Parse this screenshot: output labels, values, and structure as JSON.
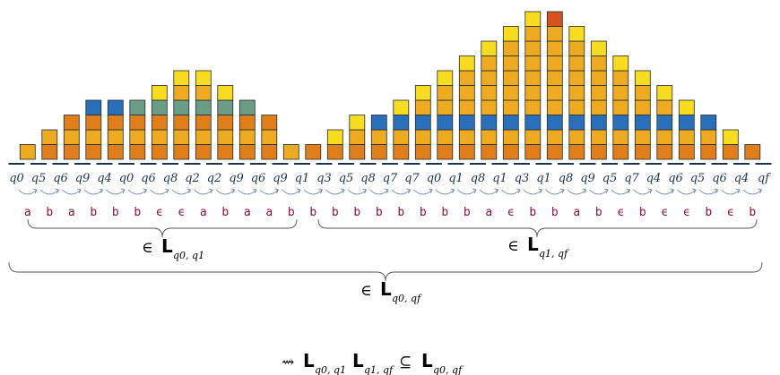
{
  "states": [
    "q0",
    "q5",
    "q6",
    "q9",
    "q4",
    "q0",
    "q6",
    "q8",
    "q2",
    "q2",
    "q9",
    "q6",
    "q9",
    "q1",
    "q3",
    "q5",
    "q8",
    "q7",
    "q7",
    "q0",
    "q1",
    "q8",
    "q1",
    "q3",
    "q1",
    "q8",
    "q9",
    "q5",
    "q7",
    "q4",
    "q6",
    "q5",
    "q6",
    "q4",
    "qf"
  ],
  "letters": [
    "a",
    "b",
    "a",
    "b",
    "b",
    "b",
    "ϵ",
    "ϵ",
    "a",
    "b",
    "a",
    "a",
    "b",
    "b",
    "b",
    "b",
    "b",
    "b",
    "b",
    "b",
    "b",
    "a",
    "ϵ",
    "b",
    "b",
    "a",
    "b",
    "ϵ",
    "b",
    "ϵ",
    "ϵ",
    "b",
    "ϵ",
    "b"
  ],
  "colors": {
    "orange": "#e07f1a",
    "amber": "#eeaa20",
    "yellow": "#f8dc20",
    "blue": "#2a6fba",
    "teal": "#6b9c86",
    "red": "#d9511e"
  },
  "stacks": [
    [
      "amber"
    ],
    [
      "orange",
      "amber"
    ],
    [
      "orange",
      "amber",
      "orange"
    ],
    [
      "orange",
      "amber",
      "orange",
      "blue"
    ],
    [
      "orange",
      "amber",
      "orange",
      "blue"
    ],
    [
      "orange",
      "amber",
      "orange",
      "teal"
    ],
    [
      "orange",
      "amber",
      "orange",
      "teal",
      "yellow"
    ],
    [
      "orange",
      "amber",
      "orange",
      "teal",
      "amber",
      "yellow"
    ],
    [
      "orange",
      "amber",
      "orange",
      "teal",
      "amber",
      "yellow"
    ],
    [
      "orange",
      "amber",
      "orange",
      "teal",
      "yellow"
    ],
    [
      "orange",
      "amber",
      "orange",
      "teal"
    ],
    [
      "orange",
      "amber",
      "orange"
    ],
    [
      "amber"
    ],
    [
      "orange"
    ],
    [
      "orange",
      "yellow"
    ],
    [
      "orange",
      "amber",
      "yellow"
    ],
    [
      "orange",
      "amber",
      "blue"
    ],
    [
      "orange",
      "amber",
      "blue",
      "yellow"
    ],
    [
      "orange",
      "amber",
      "blue",
      "amber",
      "yellow"
    ],
    [
      "orange",
      "amber",
      "blue",
      "amber",
      "amber",
      "yellow"
    ],
    [
      "orange",
      "amber",
      "blue",
      "amber",
      "amber",
      "amber",
      "yellow"
    ],
    [
      "orange",
      "amber",
      "blue",
      "amber",
      "amber",
      "amber",
      "amber",
      "yellow"
    ],
    [
      "orange",
      "amber",
      "blue",
      "amber",
      "amber",
      "amber",
      "amber",
      "amber",
      "yellow"
    ],
    [
      "orange",
      "amber",
      "blue",
      "amber",
      "amber",
      "amber",
      "amber",
      "amber",
      "amber",
      "yellow"
    ],
    [
      "orange",
      "amber",
      "blue",
      "amber",
      "amber",
      "amber",
      "amber",
      "amber",
      "amber",
      "red"
    ],
    [
      "orange",
      "amber",
      "blue",
      "amber",
      "amber",
      "amber",
      "amber",
      "amber",
      "yellow"
    ],
    [
      "orange",
      "amber",
      "blue",
      "amber",
      "amber",
      "amber",
      "amber",
      "yellow"
    ],
    [
      "orange",
      "amber",
      "blue",
      "amber",
      "amber",
      "amber",
      "yellow"
    ],
    [
      "orange",
      "amber",
      "blue",
      "amber",
      "amber",
      "yellow"
    ],
    [
      "orange",
      "amber",
      "blue",
      "amber",
      "yellow"
    ],
    [
      "orange",
      "amber",
      "blue",
      "yellow"
    ],
    [
      "orange",
      "amber",
      "blue"
    ],
    [
      "orange",
      "yellow"
    ],
    [
      "orange"
    ]
  ],
  "labels": {
    "lang_left": {
      "prefix": "∈",
      "L": "L",
      "sub": "q0, q1"
    },
    "lang_right": {
      "prefix": "∈",
      "L": "L",
      "sub": "q1, qf"
    },
    "lang_full": {
      "prefix": "∈",
      "L": "L",
      "sub": "q0, qf"
    },
    "conclusion": {
      "arrow": "⇝",
      "L1": "L",
      "sub1": "q0, q1",
      "L2": "L",
      "sub2": "q1, qf",
      "subset": "⊆",
      "L3": "L",
      "sub3": "q0, qf"
    }
  }
}
